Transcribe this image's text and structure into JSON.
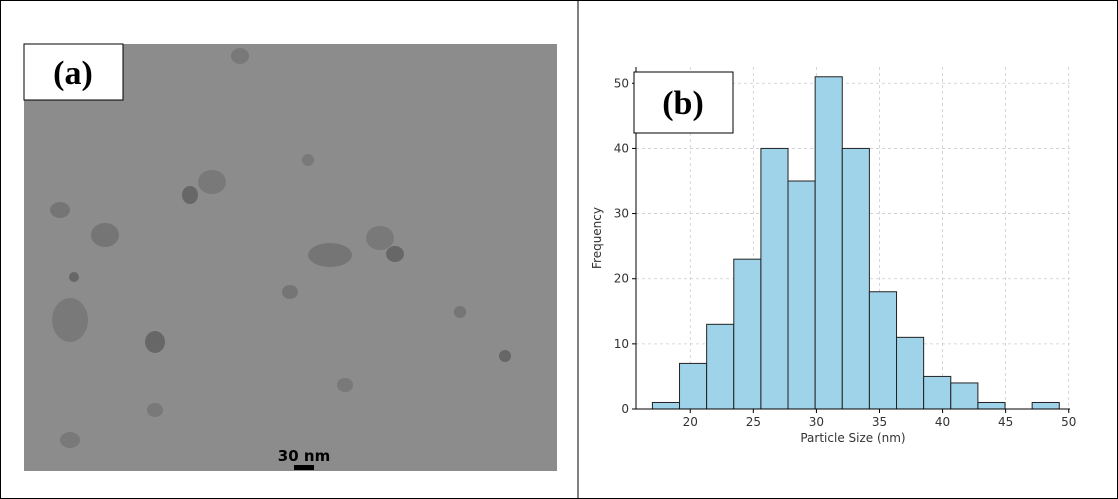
{
  "image_panel": {
    "label": "(a)",
    "scale_bar": "30 nm"
  },
  "chart_data": {
    "type": "histogram",
    "panel_label": "(b)",
    "x_label": "Particle Size (nm)",
    "y_label": "Frequency",
    "bins": [
      17.0,
      19.15,
      21.3,
      23.45,
      25.6,
      27.75,
      29.9,
      32.05,
      34.2,
      36.35,
      38.5,
      40.65,
      42.8,
      44.95,
      47.1,
      49.25
    ],
    "values": [
      1,
      7,
      13,
      23,
      40,
      35,
      51,
      40,
      18,
      11,
      5,
      4,
      1,
      0,
      1
    ],
    "color": "#9fd3ea",
    "edge_color": "#222222",
    "xlim": [
      15.7,
      50.1
    ],
    "ylim": [
      0,
      52.5
    ],
    "xticks": [
      20,
      25,
      30,
      35,
      40,
      45,
      50
    ],
    "yticks": [
      0,
      10,
      20,
      30,
      40,
      50
    ],
    "grid": true
  }
}
